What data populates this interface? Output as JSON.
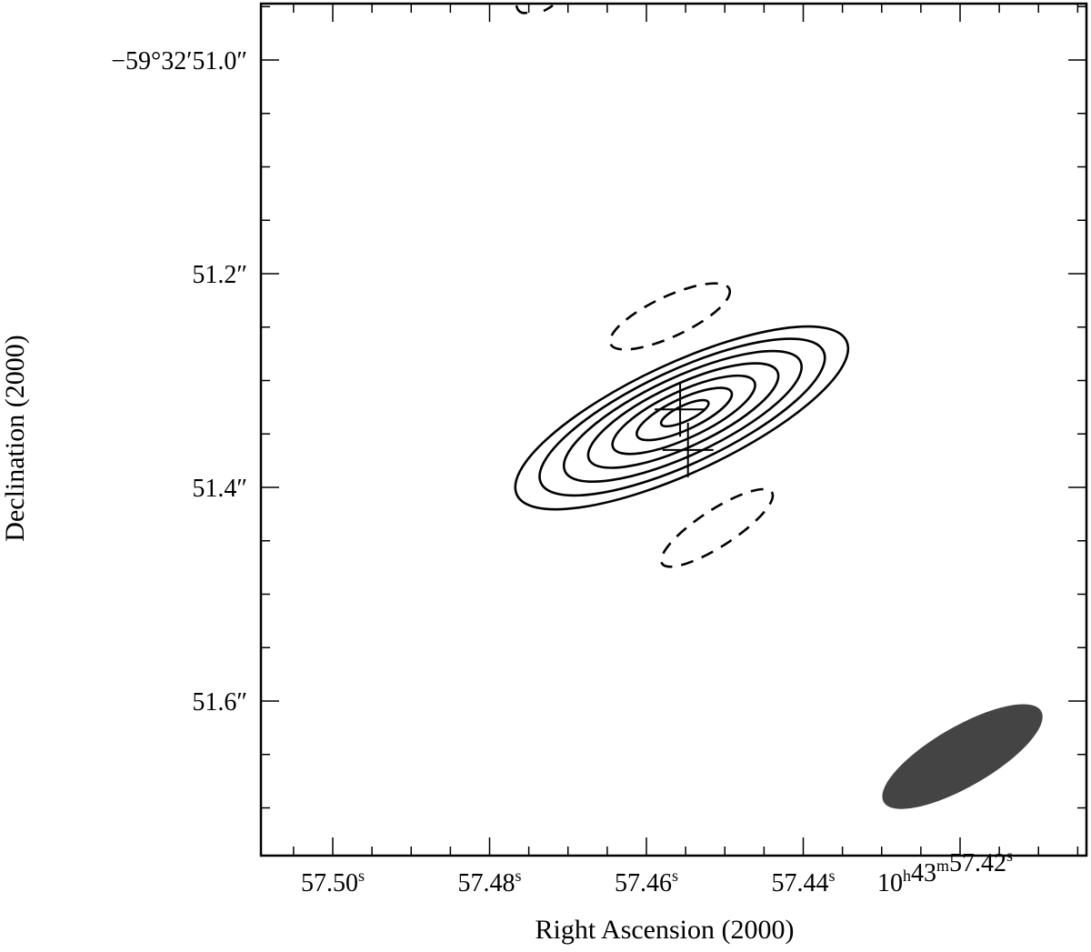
{
  "chart_data": {
    "type": "contour",
    "xlabel": "Right Ascension (2000)",
    "ylabel": "Declination (2000)",
    "x_axis": {
      "unit": "seconds of RA (10h43m)",
      "reversed": true,
      "range": [
        57.509,
        57.405
      ],
      "major_ticks": [
        57.5,
        57.48,
        57.46,
        57.44,
        57.42
      ],
      "tick_labels": [
        {
          "value": 57.5,
          "prefix": "",
          "main": "57.50",
          "sup": "s",
          "tail": ""
        },
        {
          "value": 57.48,
          "prefix": "",
          "main": "57.48",
          "sup": "s",
          "tail": ""
        },
        {
          "value": 57.46,
          "prefix": "",
          "main": "57.46",
          "sup": "s",
          "tail": ""
        },
        {
          "value": 57.44,
          "prefix": "",
          "main": "57.44",
          "sup": "s",
          "tail": ""
        },
        {
          "value": 57.42,
          "prefix": "10",
          "parts": [
            [
              "10",
              "h"
            ],
            [
              "43",
              "m"
            ],
            [
              "57.42",
              "s"
            ]
          ]
        }
      ]
    },
    "y_axis": {
      "unit": "arcsec offset within -59°32′",
      "range_top": 50.948,
      "range_bottom": 51.745,
      "major_ticks": [
        51.0,
        51.2,
        51.4,
        51.6
      ],
      "tick_labels": [
        "−59°32′51.0″",
        "51.2″",
        "51.4″",
        "51.6″"
      ]
    },
    "contours": {
      "center": {
        "ra_s": 57.4555,
        "dec": 51.335
      },
      "positive_levels": 7,
      "negative_levels": 2,
      "positive_line_style": "solid",
      "negative_line_style": "dashed"
    },
    "negative_contours": [
      {
        "ra_s": 57.457,
        "dec": 51.24
      },
      {
        "ra_s": 57.451,
        "dec": 51.438
      }
    ],
    "markers": [
      {
        "type": "cross",
        "ra_s": 57.4557,
        "dec": 51.327
      },
      {
        "type": "cross",
        "ra_s": 57.4547,
        "dec": 51.365
      }
    ],
    "beam": {
      "ra_s": 57.4197,
      "dec": 51.652,
      "fill": "#444444"
    },
    "grid": false,
    "colors": {
      "line": "#000000",
      "beam": "#444444",
      "background": "#ffffff"
    }
  }
}
